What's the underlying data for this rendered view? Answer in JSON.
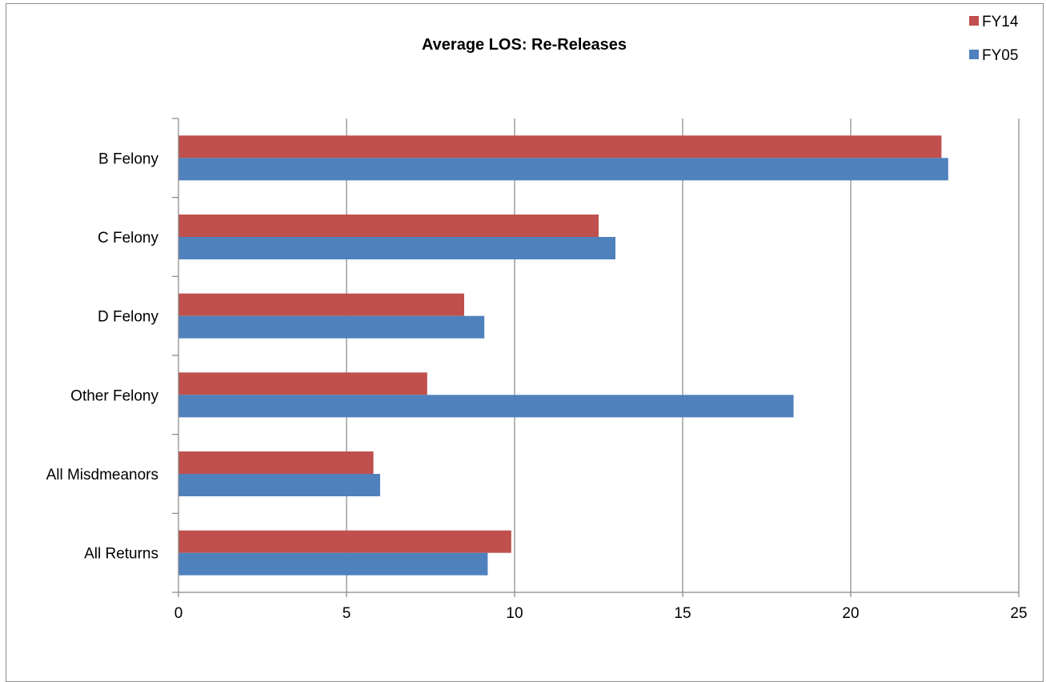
{
  "chart_data": {
    "type": "bar",
    "orientation": "horizontal",
    "title": "Average LOS: Re-Releases",
    "xlabel": "",
    "ylabel": "",
    "categories": [
      "B Felony",
      "C Felony",
      "D Felony",
      "Other Felony",
      "All Misdmeanors",
      "All Returns"
    ],
    "series": [
      {
        "name": "FY14",
        "color": "#c0504d",
        "values": [
          22.7,
          12.5,
          8.5,
          7.4,
          5.8,
          9.9
        ]
      },
      {
        "name": "FY05",
        "color": "#4f81bd",
        "values": [
          22.9,
          13.0,
          9.1,
          18.3,
          6.0,
          9.2
        ]
      }
    ],
    "xlim": [
      0,
      25
    ],
    "xticks": [
      0,
      5,
      10,
      15,
      20,
      25
    ],
    "grid": "vertical",
    "gridColor": "#868686",
    "legend": "top-right"
  }
}
